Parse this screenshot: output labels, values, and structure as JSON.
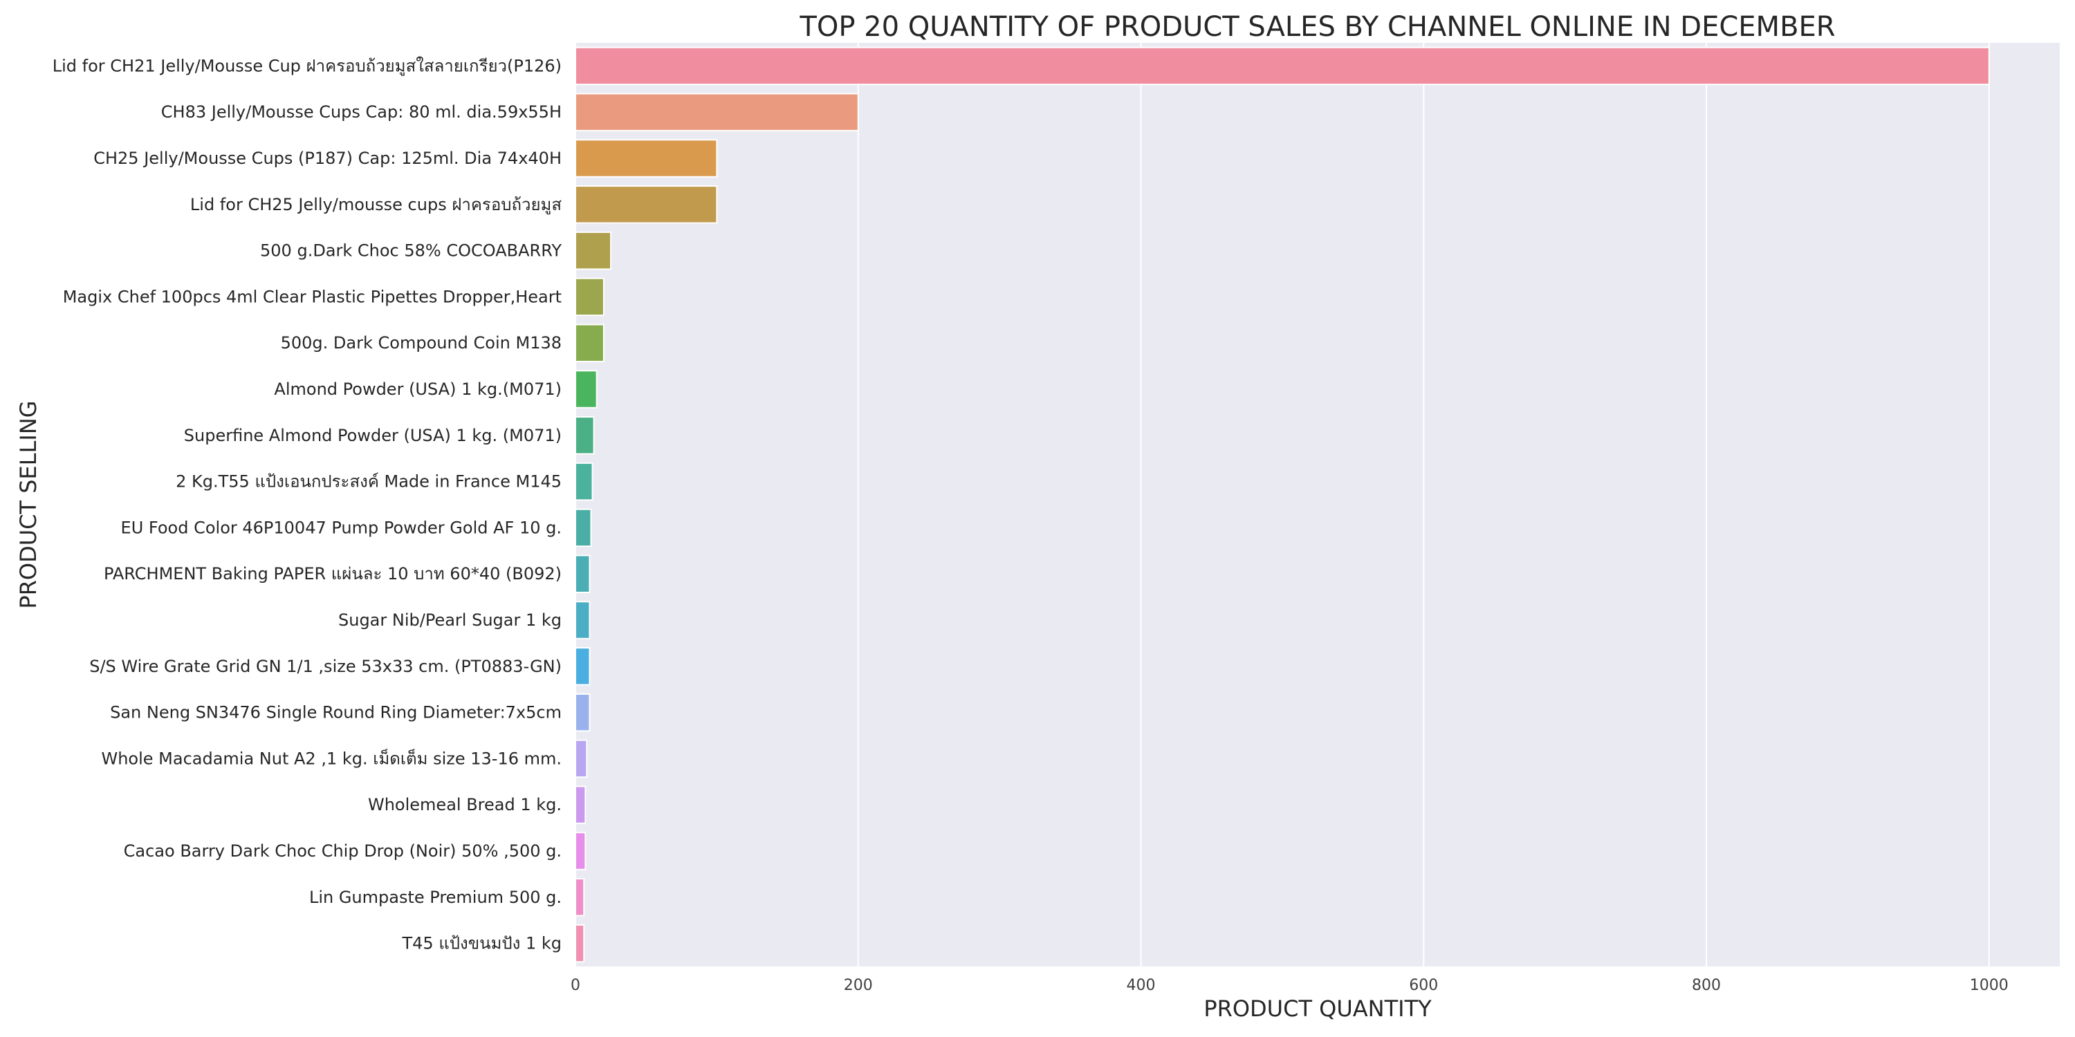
{
  "chart_data": {
    "type": "bar",
    "orientation": "horizontal",
    "title": "TOP 20 QUANTITY OF PRODUCT SALES BY CHANNEL ONLINE IN DECEMBER",
    "xlabel": "PRODUCT QUANTITY",
    "ylabel": "PRODUCT SELLING",
    "xlim": [
      0,
      1050
    ],
    "xticks": [
      0,
      200,
      400,
      600,
      800,
      1000
    ],
    "xtick_labels": [
      "0",
      "200",
      "400",
      "600",
      "800",
      "1000"
    ],
    "grid": true,
    "background": "#eaeaf2",
    "categories": [
      "Lid for CH21 Jelly/Mousse Cup ฝาครอบถ้วยมูสใสลายเกรียว(P126)",
      "CH83 Jelly/Mousse Cups Cap: 80 ml. dia.59x55H",
      "CH25  Jelly/Mousse Cups (P187) Cap: 125ml. Dia 74x40H",
      "Lid for CH25 Jelly/mousse cups ฝาครอบถ้วยมูส",
      "500 g.Dark Choc 58% COCOABARRY",
      "Magix Chef 100pcs 4ml Clear Plastic Pipettes Dropper,Heart",
      "500g. Dark Compound Coin M138",
      "Almond Powder (USA) 1 kg.(M071)",
      "Superfine Almond Powder (USA) 1 kg. (M071)",
      "2 Kg.T55 แป้งเอนกประสงค์ Made in France M145",
      "EU Food Color 46P10047 Pump Powder Gold AF 10 g.",
      "PARCHMENT Baking PAPER แผ่นละ 10 บาท 60*40 (B092)",
      "Sugar Nib/Pearl Sugar 1 kg",
      "S/S Wire Grate Grid GN 1/1 ,size 53x33 cm. (PT0883-GN)",
      "San Neng SN3476 Single Round Ring Diameter:7x5cm",
      "Whole Macadamia Nut A2 ,1 kg. เม็ดเต็ม size 13-16 mm.",
      "Wholemeal Bread 1 kg.",
      "Cacao Barry Dark Choc Chip Drop (Noir) 50% ,500 g.",
      "Lin Gumpaste Premium 500 g.",
      "T45 แป้งขนมปัง 1 kg"
    ],
    "values": [
      1000,
      200,
      100,
      100,
      25,
      20,
      20,
      15,
      13,
      12,
      11,
      10,
      10,
      10,
      10,
      8,
      7,
      7,
      6,
      6
    ],
    "colors": [
      "#f08e9f",
      "#ea9b7f",
      "#d99a4d",
      "#c19a4d",
      "#aea04d",
      "#9ca64d",
      "#86ac4d",
      "#4bb55e",
      "#4bb085",
      "#4bb29d",
      "#4aada6",
      "#4aaeb4",
      "#4baec4",
      "#4aaee0",
      "#9ab2ec",
      "#b8a7f0",
      "#cb9aef",
      "#e68ee9",
      "#ef8fc8",
      "#f090b2"
    ]
  }
}
